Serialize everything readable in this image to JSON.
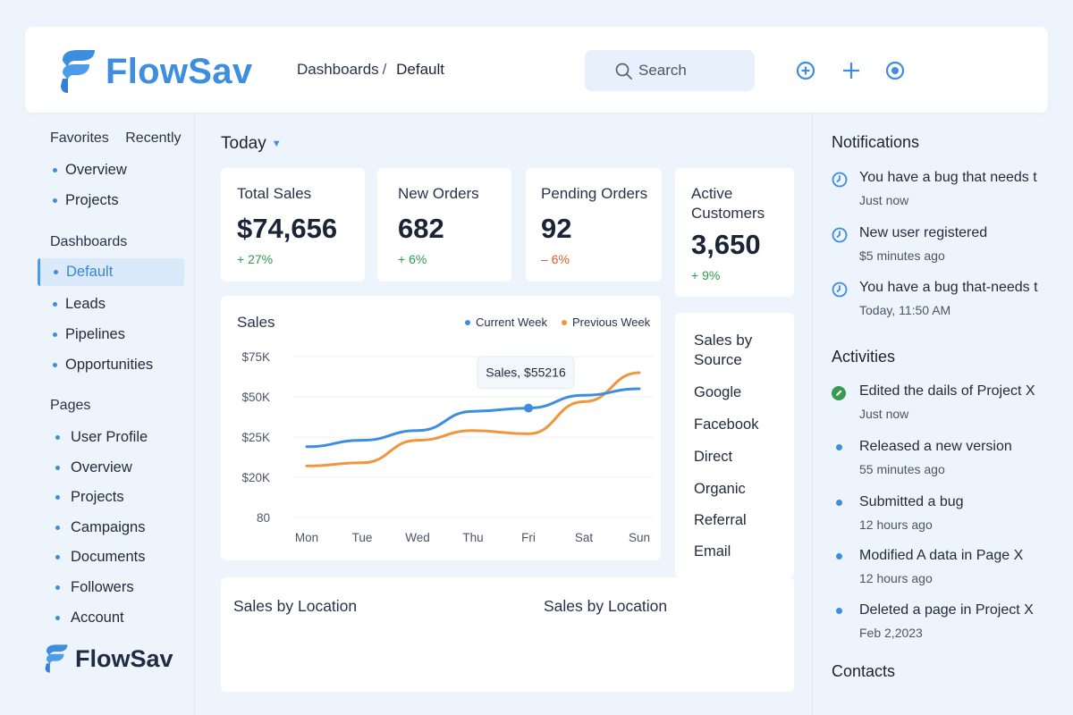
{
  "header": {
    "brand": "FlowSav",
    "breadcrumb_root": "Dashboards",
    "breadcrumb_sep": "/",
    "breadcrumb_current": "Default",
    "search_placeholder": "Search",
    "icons": [
      "add-circle-icon",
      "plus-icon",
      "record-icon"
    ]
  },
  "sidebar": {
    "tabs": [
      "Favorites",
      "Recently"
    ],
    "favorites": [
      "Overview",
      "Projects"
    ],
    "dashboards_title": "Dashboards",
    "dashboards": [
      "Default",
      "Leads",
      "Pipelines",
      "Opportunities"
    ],
    "pages_title": "Pages",
    "pages": [
      "User Profile",
      "Overview",
      "Projects",
      "Campaigns",
      "Documents",
      "Followers",
      "Account"
    ],
    "footer_brand": "FlowSav"
  },
  "main": {
    "period": "Today",
    "kpis": [
      {
        "title": "Total Sales",
        "value": "$74,656",
        "delta": "+ 27%"
      },
      {
        "title": "New Orders",
        "value": "682",
        "delta": "+ 6%"
      },
      {
        "title": "Pending Orders",
        "value": "92",
        "delta": "– 6%"
      },
      {
        "title": "Active Customers",
        "value": "3,650",
        "delta": "+ 9%"
      }
    ],
    "sales_by_source": {
      "title": "Sales by Source",
      "items": [
        "Google",
        "Facebook",
        "Direct",
        "Organic",
        "Referral",
        "Email"
      ]
    },
    "location_titles": [
      "Sales by Location",
      "Sales by Location"
    ]
  },
  "chart_data": {
    "type": "line",
    "title": "Sales",
    "categories": [
      "Mon",
      "Tue",
      "Wed",
      "Thu",
      "Fri",
      "Sat",
      "Sun"
    ],
    "y_ticks": [
      "$75K",
      "$50K",
      "$25K",
      "$20K",
      "80"
    ],
    "series": [
      {
        "name": "Current Week",
        "color": "#3d8de0",
        "values": [
          22,
          24,
          27,
          33,
          34,
          38,
          40
        ]
      },
      {
        "name": "Previous Week",
        "color": "#f0963c",
        "values": [
          16,
          17,
          24,
          27,
          26,
          36,
          45
        ]
      }
    ],
    "tooltip": "Sales, $55216",
    "tooltip_category": "Fri",
    "legend": "top-right",
    "grid": true
  },
  "notifications": {
    "title": "Notifications",
    "items": [
      {
        "text": "You have a bug that needs t",
        "time": "Just now"
      },
      {
        "text": "New user registered",
        "time": "$5 minutes ago"
      },
      {
        "text": "You have a bug that-needs t",
        "time": "Today, 11:50 AM"
      }
    ]
  },
  "activities": {
    "title": "Activities",
    "items": [
      {
        "text": "Edited the dails of Project X",
        "time": "Just now"
      },
      {
        "text": "Released a new version",
        "time": "55 minutes ago"
      },
      {
        "text": "Submitted a bug",
        "time": "12 hours ago"
      },
      {
        "text": "Modified A data in Page X",
        "time": "12 hours ago"
      },
      {
        "text": "Deleted a page in Project X",
        "time": "Feb 2,2023"
      }
    ]
  },
  "contacts": {
    "title": "Contacts"
  },
  "colors": {
    "accent": "#3d8de0",
    "positive": "#2f9a4a",
    "negative": "#e0592a",
    "secondary_series": "#f0963c"
  }
}
